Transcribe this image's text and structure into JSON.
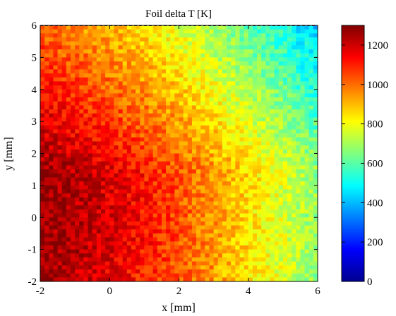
{
  "chart_data": {
    "type": "heatmap",
    "title": "Foil delta T [K]",
    "xlabel": "x [mm]",
    "ylabel": "y [mm]",
    "xlim": [
      -2,
      6
    ],
    "ylim": [
      -2,
      6
    ],
    "x_ticks": [
      -2,
      0,
      2,
      4,
      6
    ],
    "y_ticks": [
      -2,
      -1,
      0,
      1,
      2,
      3,
      4,
      5,
      6
    ],
    "colorbar": {
      "range": [
        0,
        1300
      ],
      "ticks": [
        0,
        200,
        400,
        600,
        800,
        1000,
        1200
      ],
      "colormap": "jet"
    },
    "grid_resolution": [
      64,
      64
    ],
    "field": {
      "description_values": [
        {
          "x": -2,
          "y": 0,
          "value": 1150
        },
        {
          "x": 0,
          "y": 0,
          "value": 1120
        },
        {
          "x": 2,
          "y": 0,
          "value": 930
        },
        {
          "x": 4,
          "y": 0,
          "value": 700
        },
        {
          "x": 6,
          "y": 0,
          "value": 520
        },
        {
          "x": -2,
          "y": 4,
          "value": 1100
        },
        {
          "x": 2,
          "y": 4,
          "value": 800
        },
        {
          "x": 6,
          "y": 6,
          "value": 300
        },
        {
          "x": -2,
          "y": -2,
          "value": 1050
        },
        {
          "x": 6,
          "y": -2,
          "value": 560
        }
      ]
    }
  }
}
